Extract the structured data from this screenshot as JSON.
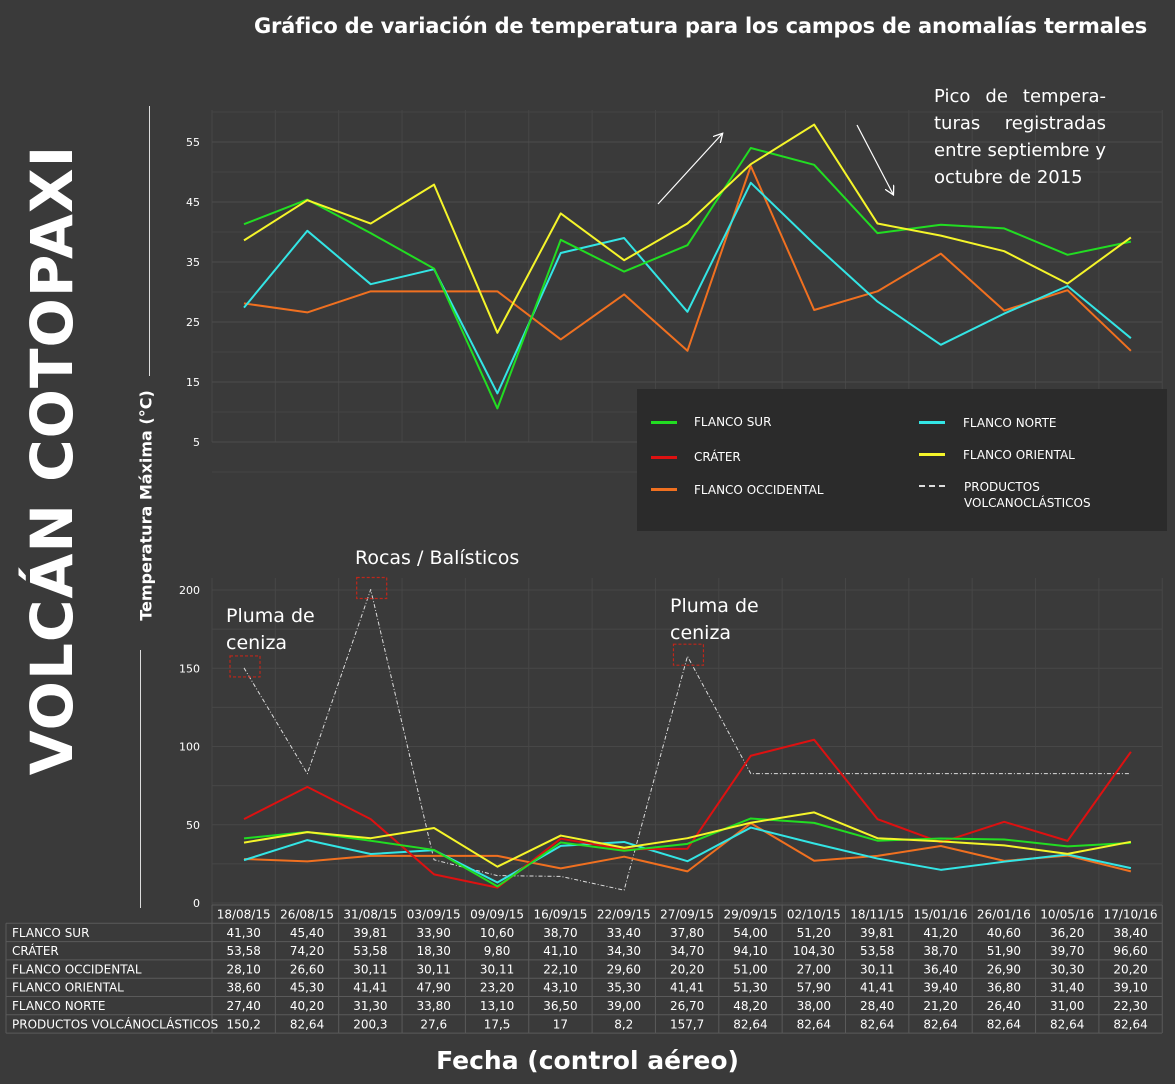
{
  "title": "Gráfico de variación de temperatura para los campos de anomalías termales",
  "volcano": "VOLCÁN COTOPAXI",
  "ylabel": "Temperatura Máxima (°C)",
  "xlabel": "Fecha (control aéreo)",
  "note": "Pico de tempera-turas registradas entre septiembre y octubre de 2015",
  "annotations": {
    "pluma1": "Pluma de ceniza",
    "rocas": "Rocas / Balísticos",
    "pluma2": "Pluma de ceniza"
  },
  "colors": {
    "background": "#3a3a3a",
    "flanco_sur": "#22dd22",
    "crater": "#dd1111",
    "flanco_occidental": "#f07020",
    "flanco_oriental": "#f5f52a",
    "flanco_norte": "#33e5e5",
    "productos": "#dddddd"
  },
  "legend": [
    {
      "key": "flanco_sur",
      "label": "FLANCO SUR"
    },
    {
      "key": "crater",
      "label": "CRÁTER"
    },
    {
      "key": "flanco_occidental",
      "label": "FLANCO OCCIDENTAL"
    },
    {
      "key": "flanco_norte",
      "label": "FLANCO NORTE"
    },
    {
      "key": "flanco_oriental",
      "label": "FLANCO ORIENTAL"
    },
    {
      "key": "productos",
      "label": "PRODUCTOS VOLCANOCLÁSTICOS"
    }
  ],
  "chart_data": [
    {
      "type": "line",
      "title": "Gráfico de variación de temperatura para los campos de anomalías termales",
      "ylabel": "Temperatura Máxima (°C)",
      "ylim": [
        5,
        60
      ],
      "yticks": [
        5,
        15,
        25,
        35,
        45,
        55
      ],
      "grid": true,
      "legend": "bottom-right",
      "categories": [
        "18/08/15",
        "26/08/15",
        "31/08/15",
        "03/09/15",
        "09/09/15",
        "16/09/15",
        "22/09/15",
        "27/09/15",
        "29/09/15",
        "02/10/15",
        "18/11/15",
        "15/01/16",
        "26/01/16",
        "10/05/16",
        "17/10/16"
      ],
      "series": [
        {
          "key": "flanco_sur",
          "name": "FLANCO SUR",
          "values": [
            41.3,
            45.4,
            39.81,
            33.9,
            10.6,
            38.7,
            33.4,
            37.8,
            54.0,
            51.2,
            39.81,
            41.2,
            40.6,
            36.2,
            38.4
          ]
        },
        {
          "key": "flanco_occidental",
          "name": "FLANCO OCCIDENTAL",
          "values": [
            28.1,
            26.6,
            30.11,
            30.11,
            30.11,
            22.1,
            29.6,
            20.2,
            51.0,
            27.0,
            30.11,
            36.4,
            26.9,
            30.3,
            20.2
          ]
        },
        {
          "key": "flanco_oriental",
          "name": "FLANCO ORIENTAL",
          "values": [
            38.6,
            45.3,
            41.41,
            47.9,
            23.2,
            43.1,
            35.3,
            41.41,
            51.3,
            57.9,
            41.41,
            39.4,
            36.8,
            31.4,
            39.1
          ]
        },
        {
          "key": "flanco_norte",
          "name": "FLANCO NORTE",
          "values": [
            27.4,
            40.2,
            31.3,
            33.8,
            13.1,
            36.5,
            39.0,
            26.7,
            48.2,
            38.0,
            28.4,
            21.2,
            26.4,
            31.0,
            22.3
          ]
        }
      ]
    },
    {
      "type": "line",
      "ylim": [
        0,
        210
      ],
      "yticks": [
        0,
        50,
        100,
        150,
        200
      ],
      "grid": true,
      "categories": [
        "18/08/15",
        "26/08/15",
        "31/08/15",
        "03/09/15",
        "09/09/15",
        "16/09/15",
        "22/09/15",
        "27/09/15",
        "29/09/15",
        "02/10/15",
        "18/11/15",
        "15/01/16",
        "26/01/16",
        "10/05/16",
        "17/10/16"
      ],
      "series": [
        {
          "key": "flanco_sur",
          "name": "FLANCO SUR",
          "row_label": "FLANCO SUR",
          "values": [
            41.3,
            45.4,
            39.81,
            33.9,
            10.6,
            38.7,
            33.4,
            37.8,
            54.0,
            51.2,
            39.81,
            41.2,
            40.6,
            36.2,
            38.4
          ],
          "labels": [
            "41,30",
            "45,40",
            "39,81",
            "33,90",
            "10,60",
            "38,70",
            "33,40",
            "37,80",
            "54,00",
            "51,20",
            "39,81",
            "41,20",
            "40,60",
            "36,20",
            "38,40"
          ]
        },
        {
          "key": "crater",
          "name": "CRÁTER",
          "row_label": "CRÁTER",
          "values": [
            53.58,
            74.2,
            53.58,
            18.3,
            9.8,
            41.1,
            34.3,
            34.7,
            94.1,
            104.3,
            53.58,
            38.7,
            51.9,
            39.7,
            96.6
          ],
          "labels": [
            "53,58",
            "74,20",
            "53,58",
            "18,30",
            "9,80",
            "41,10",
            "34,30",
            "34,70",
            "94,10",
            "104,30",
            "53,58",
            "38,70",
            "51,90",
            "39,70",
            "96,60"
          ]
        },
        {
          "key": "flanco_occidental",
          "name": "FLANCO OCCIDENTAL",
          "row_label": "FLANCO OCCIDENTAL",
          "values": [
            28.1,
            26.6,
            30.11,
            30.11,
            30.11,
            22.1,
            29.6,
            20.2,
            51.0,
            27.0,
            30.11,
            36.4,
            26.9,
            30.3,
            20.2
          ],
          "labels": [
            "28,10",
            "26,60",
            "30,11",
            "30,11",
            "30,11",
            "22,10",
            "29,60",
            "20,20",
            "51,00",
            "27,00",
            "30,11",
            "36,40",
            "26,90",
            "30,30",
            "20,20"
          ]
        },
        {
          "key": "flanco_oriental",
          "name": "FLANCO ORIENTAL",
          "row_label": "FLANCO ORIENTAL",
          "values": [
            38.6,
            45.3,
            41.41,
            47.9,
            23.2,
            43.1,
            35.3,
            41.41,
            51.3,
            57.9,
            41.41,
            39.4,
            36.8,
            31.4,
            39.1
          ],
          "labels": [
            "38,60",
            "45,30",
            "41,41",
            "47,90",
            "23,20",
            "43,10",
            "35,30",
            "41,41",
            "51,30",
            "57,90",
            "41,41",
            "39,40",
            "36,80",
            "31,40",
            "39,10"
          ]
        },
        {
          "key": "flanco_norte",
          "name": "FLANCO NORTE",
          "row_label": "FLANCO NORTE",
          "values": [
            27.4,
            40.2,
            31.3,
            33.8,
            13.1,
            36.5,
            39.0,
            26.7,
            48.2,
            38.0,
            28.4,
            21.2,
            26.4,
            31.0,
            22.3
          ],
          "labels": [
            "27,40",
            "40,20",
            "31,30",
            "33,80",
            "13,10",
            "36,50",
            "39,00",
            "26,70",
            "48,20",
            "38,00",
            "28,40",
            "21,20",
            "26,40",
            "31,00",
            "22,30"
          ]
        },
        {
          "key": "productos",
          "name": "PRODUCTOS VOLCANOCLÁSTICOS",
          "row_label": "PRODUCTOS VOLCÁNOCLÁSTICOS",
          "values": [
            150.2,
            82.64,
            200.3,
            27.6,
            17.5,
            17,
            8.2,
            157.7,
            82.64,
            82.64,
            82.64,
            82.64,
            82.64,
            82.64,
            82.64
          ],
          "labels": [
            "150,2",
            "82,64",
            "200,3",
            "27,6",
            "17,5",
            "17",
            "8,2",
            "157,7",
            "82,64",
            "82,64",
            "82,64",
            "82,64",
            "82,64",
            "82,64",
            "82,64"
          ]
        }
      ]
    }
  ]
}
